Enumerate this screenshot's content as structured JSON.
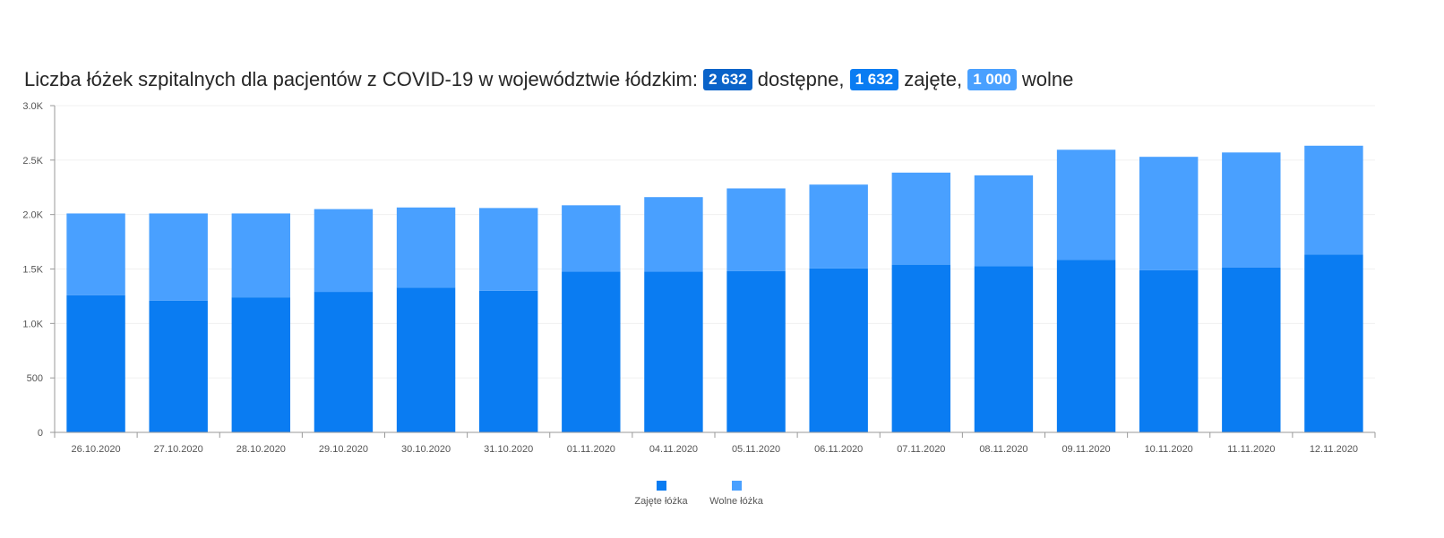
{
  "header": {
    "title_prefix": "Liczba łóżek szpitalnych dla pacjentów z COVID-19 w województwie łódzkim:",
    "available_value": "2 632",
    "available_label": "dostępne,",
    "occupied_value": "1 632",
    "occupied_label": "zajęte,",
    "free_value": "1 000",
    "free_label": "wolne"
  },
  "colors": {
    "occupied": "#0a7cf2",
    "free": "#49a0ff",
    "available_badge": "#0a63c9"
  },
  "chart_data": {
    "type": "bar",
    "stacked": true,
    "categories": [
      "26.10.2020",
      "27.10.2020",
      "28.10.2020",
      "29.10.2020",
      "30.10.2020",
      "31.10.2020",
      "01.11.2020",
      "04.11.2020",
      "05.11.2020",
      "06.11.2020",
      "07.11.2020",
      "08.11.2020",
      "09.11.2020",
      "10.11.2020",
      "11.11.2020",
      "12.11.2020"
    ],
    "series": [
      {
        "name": "Zajęte łóżka",
        "color": "#0a7cf2",
        "values": [
          1260,
          1210,
          1240,
          1290,
          1330,
          1300,
          1475,
          1475,
          1480,
          1505,
          1540,
          1525,
          1585,
          1490,
          1515,
          1632
        ]
      },
      {
        "name": "Wolne łóżka",
        "color": "#49a0ff",
        "values": [
          750,
          800,
          770,
          760,
          735,
          760,
          610,
          685,
          760,
          770,
          845,
          835,
          1010,
          1040,
          1055,
          1000
        ]
      }
    ],
    "yticks": [
      0,
      500,
      1000,
      1500,
      2000,
      2500,
      3000
    ],
    "ytick_labels": [
      "0",
      "500",
      "1.0K",
      "1.5K",
      "2.0K",
      "2.5K",
      "3.0K"
    ],
    "ylim": [
      0,
      3000
    ],
    "grid": true,
    "legend": "bottom-center"
  }
}
